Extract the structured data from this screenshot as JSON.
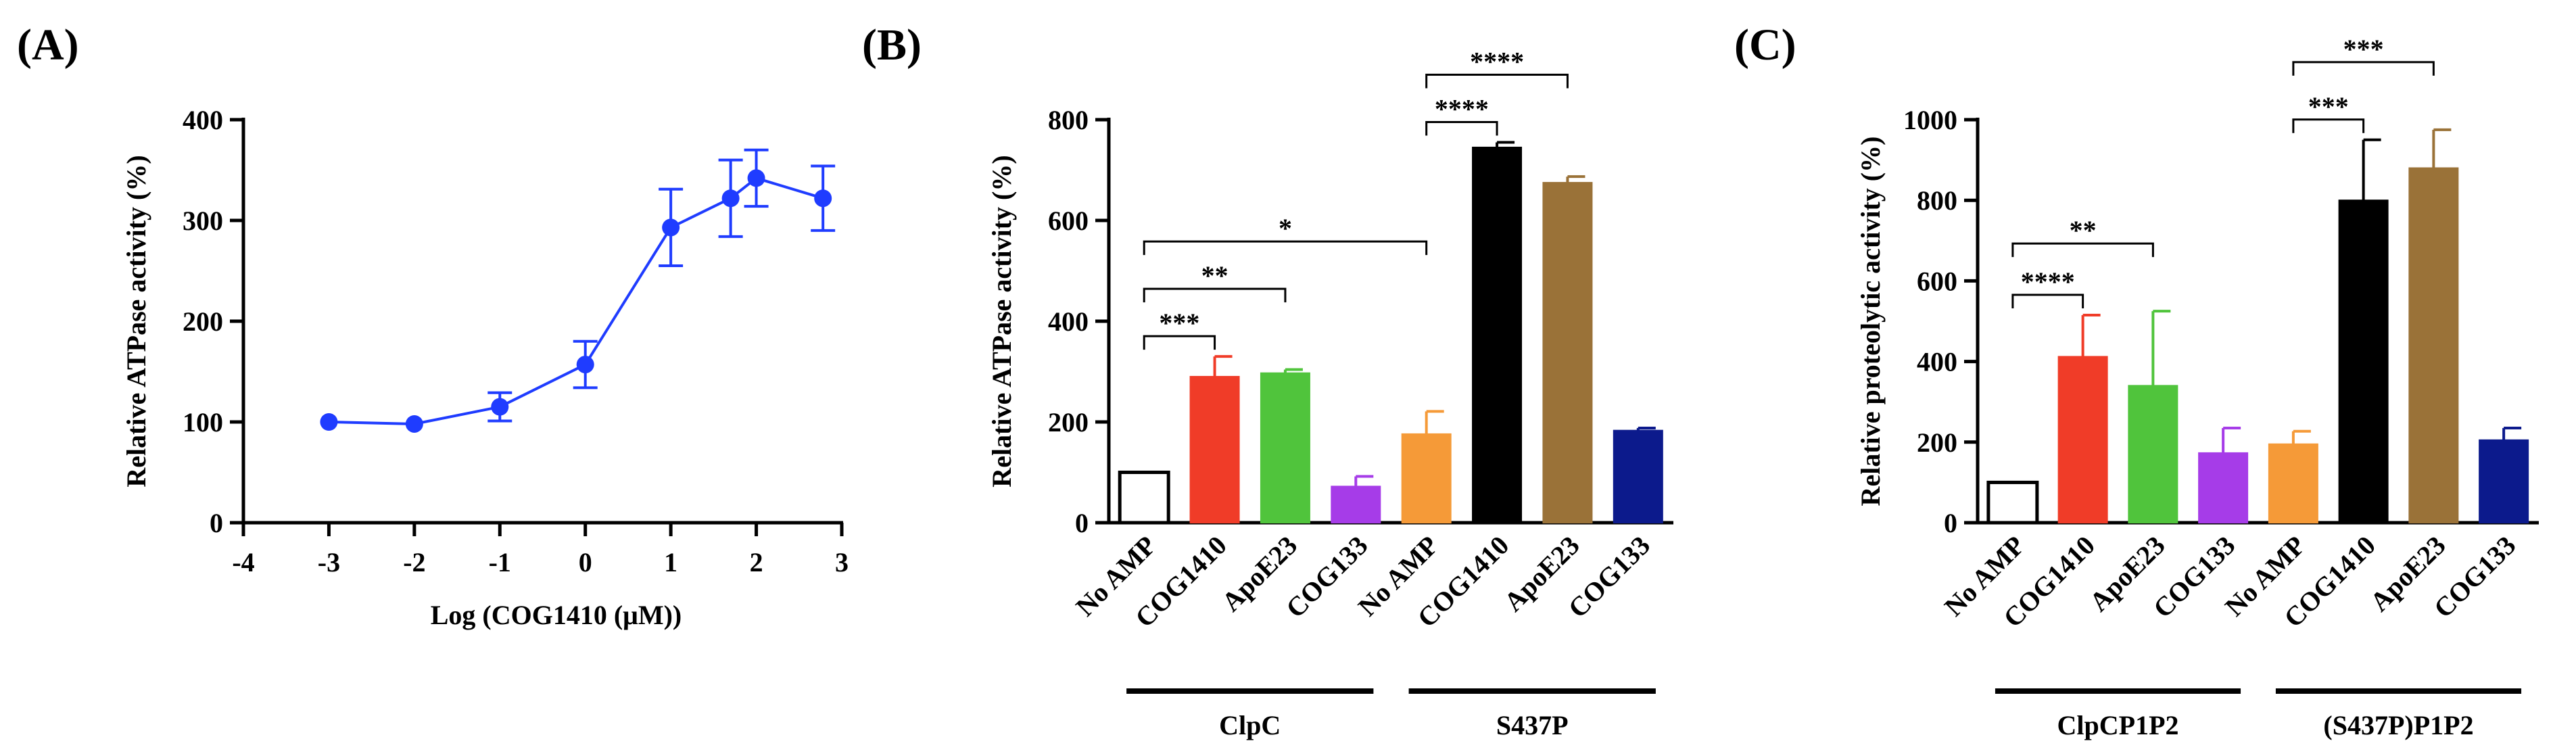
{
  "chart_data": [
    {
      "panel": "(A)",
      "type": "line",
      "xlabel": "Log (COG1410 (μM))",
      "ylabel": "Relative ATPase activity (%)",
      "xlim": [
        -4,
        3
      ],
      "ylim": [
        0,
        400
      ],
      "xticks": [
        -4,
        -3,
        -2,
        -1,
        0,
        1,
        2,
        3
      ],
      "yticks": [
        0,
        100,
        200,
        300,
        400
      ],
      "color": "#1f3cff",
      "series": [
        {
          "name": "COG1410",
          "x": [
            -3,
            -2,
            -1,
            0,
            1,
            1.7,
            2,
            2.78
          ],
          "y": [
            100,
            98,
            115,
            157,
            293,
            322,
            342,
            322
          ],
          "err": [
            0,
            0,
            14,
            23,
            38,
            38,
            28,
            32
          ]
        }
      ]
    },
    {
      "panel": "(B)",
      "type": "bar",
      "ylabel": "Relative ATPase activity (%)",
      "ylim": [
        0,
        800
      ],
      "yticks": [
        0,
        200,
        400,
        600,
        800
      ],
      "categories": [
        "No AMP",
        "COG1410",
        "ApoE23",
        "COG133",
        "No AMP",
        "COG1410",
        "ApoE23",
        "COG133"
      ],
      "values": [
        100,
        290,
        297,
        72,
        176,
        745,
        675,
        183
      ],
      "errors": [
        0,
        40,
        7,
        20,
        45,
        10,
        12,
        5
      ],
      "colors": [
        "#ffffff",
        "#f03c28",
        "#50c43c",
        "#a63ce8",
        "#f59a38",
        "#000000",
        "#9a7238",
        "#0c1a8c"
      ],
      "groups": [
        {
          "label": "ClpC",
          "start": 0,
          "end": 3
        },
        {
          "label": "S437P",
          "start": 4,
          "end": 7
        }
      ],
      "significance": [
        {
          "from": 0,
          "to": 1,
          "label": "***"
        },
        {
          "from": 0,
          "to": 2,
          "label": "**"
        },
        {
          "from": 0,
          "to": 4,
          "label": "*"
        },
        {
          "from": 4,
          "to": 5,
          "label": "****"
        },
        {
          "from": 4,
          "to": 6,
          "label": "****"
        }
      ]
    },
    {
      "panel": "(C)",
      "type": "bar",
      "ylabel": "Relative proteolytic activity (%)",
      "ylim": [
        0,
        1000
      ],
      "yticks": [
        0,
        200,
        400,
        600,
        800,
        1000
      ],
      "categories": [
        "No AMP",
        "COG1410",
        "ApoE23",
        "COG133",
        "No AMP",
        "COG1410",
        "ApoE23",
        "COG133"
      ],
      "values": [
        100,
        412,
        340,
        173,
        195,
        800,
        880,
        205
      ],
      "errors": [
        0,
        103,
        185,
        62,
        32,
        150,
        95,
        30
      ],
      "colors": [
        "#ffffff",
        "#f03c28",
        "#50c43c",
        "#a63ce8",
        "#f59a38",
        "#000000",
        "#9a7238",
        "#0c1a8c"
      ],
      "groups": [
        {
          "label": "ClpCP1P2",
          "start": 0,
          "end": 3
        },
        {
          "label": "(S437P)P1P2",
          "start": 4,
          "end": 7
        }
      ],
      "significance": [
        {
          "from": 0,
          "to": 1,
          "label": "****"
        },
        {
          "from": 0,
          "to": 2,
          "label": "**"
        },
        {
          "from": 4,
          "to": 5,
          "label": "***"
        },
        {
          "from": 4,
          "to": 6,
          "label": "***"
        }
      ]
    }
  ]
}
